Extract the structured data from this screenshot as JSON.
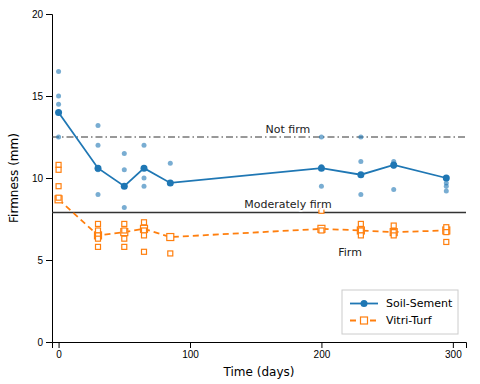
{
  "chart_data": {
    "type": "scatter",
    "x_label": "Time (days)",
    "y_label": "Firmness (mm)",
    "series": [
      {
        "name": "Soil-Sement",
        "type": "line",
        "marker": "circle",
        "line_style": "solid",
        "x": [
          0,
          30,
          50,
          65,
          85,
          200,
          230,
          255,
          295
        ],
        "values": [
          14.0,
          10.6,
          9.5,
          10.6,
          9.7,
          10.6,
          10.2,
          10.8,
          10.0
        ]
      },
      {
        "type": "scatter",
        "marker": "circle",
        "x": [
          0,
          0,
          0,
          0,
          30,
          30,
          30,
          30,
          50,
          50,
          50,
          50,
          65,
          65,
          65,
          85,
          200,
          200,
          200,
          230,
          230,
          230,
          255,
          255,
          255,
          295,
          295,
          295
        ],
        "values": [
          16.5,
          15.0,
          14.5,
          12.5,
          13.2,
          12.0,
          10.5,
          9.0,
          11.5,
          10.5,
          9.5,
          8.2,
          12.0,
          10.0,
          9.5,
          10.9,
          12.5,
          10.7,
          9.5,
          12.5,
          11.0,
          9.0,
          11.0,
          10.7,
          9.3,
          9.7,
          9.5,
          9.2
        ]
      },
      {
        "name": "Vitri-Turf",
        "type": "line",
        "marker": "square",
        "line_style": "dashed",
        "x": [
          0,
          30,
          50,
          65,
          85,
          200,
          230,
          255,
          295
        ],
        "values": [
          8.7,
          6.5,
          6.7,
          6.9,
          6.4,
          6.9,
          6.8,
          6.7,
          6.8
        ]
      },
      {
        "type": "scatter",
        "marker": "square",
        "x": [
          0,
          0,
          0,
          0,
          30,
          30,
          30,
          30,
          30,
          50,
          50,
          50,
          50,
          65,
          65,
          65,
          65,
          85,
          200,
          200,
          230,
          230,
          230,
          255,
          255,
          255,
          295,
          295,
          295
        ],
        "values": [
          10.8,
          10.5,
          9.5,
          8.8,
          7.2,
          6.8,
          6.5,
          6.3,
          5.8,
          7.2,
          6.8,
          6.3,
          5.8,
          7.3,
          6.8,
          6.5,
          5.5,
          5.4,
          8.0,
          6.8,
          7.2,
          6.8,
          6.5,
          7.1,
          6.7,
          6.5,
          7.0,
          6.7,
          6.1
        ]
      }
    ],
    "hlines": [
      {
        "value": 12.5,
        "label": "Not firm",
        "line_style": "dashdot"
      },
      {
        "value": 7.9,
        "label": "Moderately firm",
        "line_style": "solid"
      }
    ],
    "annotations": [
      "Firm"
    ],
    "xlim": [
      -5,
      310
    ],
    "ylim": [
      0,
      20
    ],
    "xticks": [
      0,
      100,
      200,
      300
    ],
    "yticks": [
      0,
      5,
      10,
      15,
      20
    ],
    "grid": false,
    "legend": "lower right"
  }
}
